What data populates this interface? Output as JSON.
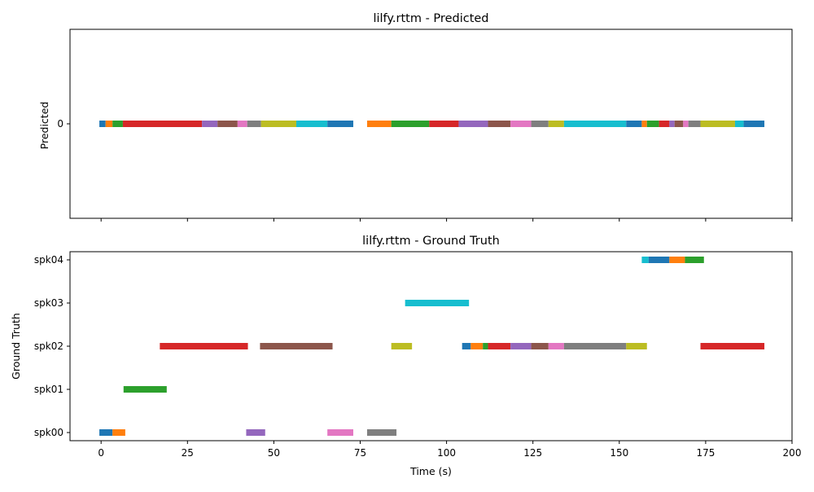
{
  "chart_data": [
    {
      "type": "bar",
      "subtype": "horizontal-timeline",
      "title": "lilfy.rttm - Predicted",
      "ylabel": "Predicted",
      "xlabel": "",
      "xlim": [
        -9,
        200
      ],
      "rows": [
        "0"
      ],
      "xticks": [
        0,
        25,
        50,
        75,
        100,
        125,
        150,
        175,
        200
      ],
      "show_xtick_labels": false,
      "grid": false,
      "segments": [
        {
          "row": "0",
          "start": -0.5,
          "end": 1.3,
          "color": "#1f77b4"
        },
        {
          "row": "0",
          "start": 1.3,
          "end": 3.3,
          "color": "#ff7f0e"
        },
        {
          "row": "0",
          "start": 3.3,
          "end": 6.3,
          "color": "#2ca02c"
        },
        {
          "row": "0",
          "start": 6.3,
          "end": 29.2,
          "color": "#d62728"
        },
        {
          "row": "0",
          "start": 29.2,
          "end": 33.7,
          "color": "#9467bd"
        },
        {
          "row": "0",
          "start": 33.7,
          "end": 39.5,
          "color": "#8c564b"
        },
        {
          "row": "0",
          "start": 39.5,
          "end": 42.3,
          "color": "#e377c2"
        },
        {
          "row": "0",
          "start": 42.3,
          "end": 46.3,
          "color": "#7f7f7f"
        },
        {
          "row": "0",
          "start": 46.3,
          "end": 56.5,
          "color": "#bcbd22"
        },
        {
          "row": "0",
          "start": 56.5,
          "end": 65.5,
          "color": "#17becf"
        },
        {
          "row": "0",
          "start": 65.5,
          "end": 73.0,
          "color": "#1f77b4"
        },
        {
          "row": "0",
          "start": 77.0,
          "end": 84.0,
          "color": "#ff7f0e"
        },
        {
          "row": "0",
          "start": 84.0,
          "end": 95.0,
          "color": "#2ca02c"
        },
        {
          "row": "0",
          "start": 95.0,
          "end": 103.5,
          "color": "#d62728"
        },
        {
          "row": "0",
          "start": 103.5,
          "end": 112.0,
          "color": "#9467bd"
        },
        {
          "row": "0",
          "start": 112.0,
          "end": 118.5,
          "color": "#8c564b"
        },
        {
          "row": "0",
          "start": 118.5,
          "end": 124.5,
          "color": "#e377c2"
        },
        {
          "row": "0",
          "start": 124.5,
          "end": 129.5,
          "color": "#7f7f7f"
        },
        {
          "row": "0",
          "start": 129.5,
          "end": 134.0,
          "color": "#bcbd22"
        },
        {
          "row": "0",
          "start": 134.0,
          "end": 152.0,
          "color": "#17becf"
        },
        {
          "row": "0",
          "start": 152.0,
          "end": 156.5,
          "color": "#1f77b4"
        },
        {
          "row": "0",
          "start": 156.5,
          "end": 158.0,
          "color": "#ff7f0e"
        },
        {
          "row": "0",
          "start": 158.0,
          "end": 161.5,
          "color": "#2ca02c"
        },
        {
          "row": "0",
          "start": 161.5,
          "end": 164.5,
          "color": "#d62728"
        },
        {
          "row": "0",
          "start": 164.5,
          "end": 166.0,
          "color": "#9467bd"
        },
        {
          "row": "0",
          "start": 166.0,
          "end": 168.5,
          "color": "#8c564b"
        },
        {
          "row": "0",
          "start": 168.5,
          "end": 170.0,
          "color": "#e377c2"
        },
        {
          "row": "0",
          "start": 170.0,
          "end": 173.5,
          "color": "#7f7f7f"
        },
        {
          "row": "0",
          "start": 173.5,
          "end": 183.5,
          "color": "#bcbd22"
        },
        {
          "row": "0",
          "start": 183.5,
          "end": 186.0,
          "color": "#17becf"
        },
        {
          "row": "0",
          "start": 186.0,
          "end": 192.0,
          "color": "#1f77b4"
        }
      ]
    },
    {
      "type": "bar",
      "subtype": "horizontal-timeline",
      "title": "lilfy.rttm - Ground Truth",
      "ylabel": "Ground Truth",
      "xlabel": "Time (s)",
      "xlim": [
        -9,
        200
      ],
      "rows": [
        "spk00",
        "spk01",
        "spk02",
        "spk03",
        "spk04"
      ],
      "xticks": [
        0,
        25,
        50,
        75,
        100,
        125,
        150,
        175,
        200
      ],
      "show_xtick_labels": true,
      "grid": false,
      "segments": [
        {
          "row": "spk00",
          "start": -0.5,
          "end": 3.3,
          "color": "#1f77b4"
        },
        {
          "row": "spk00",
          "start": 3.3,
          "end": 7.0,
          "color": "#ff7f0e"
        },
        {
          "row": "spk01",
          "start": 6.5,
          "end": 19.0,
          "color": "#2ca02c"
        },
        {
          "row": "spk02",
          "start": 17.0,
          "end": 42.5,
          "color": "#d62728"
        },
        {
          "row": "spk00",
          "start": 42.0,
          "end": 47.5,
          "color": "#9467bd"
        },
        {
          "row": "spk02",
          "start": 46.0,
          "end": 67.0,
          "color": "#8c564b"
        },
        {
          "row": "spk00",
          "start": 65.5,
          "end": 73.0,
          "color": "#e377c2"
        },
        {
          "row": "spk00",
          "start": 77.0,
          "end": 85.5,
          "color": "#7f7f7f"
        },
        {
          "row": "spk02",
          "start": 84.0,
          "end": 90.0,
          "color": "#bcbd22"
        },
        {
          "row": "spk03",
          "start": 88.0,
          "end": 106.5,
          "color": "#17becf"
        },
        {
          "row": "spk02",
          "start": 104.5,
          "end": 107.0,
          "color": "#1f77b4"
        },
        {
          "row": "spk02",
          "start": 107.0,
          "end": 110.5,
          "color": "#ff7f0e"
        },
        {
          "row": "spk02",
          "start": 110.5,
          "end": 112.0,
          "color": "#2ca02c"
        },
        {
          "row": "spk02",
          "start": 112.0,
          "end": 118.5,
          "color": "#d62728"
        },
        {
          "row": "spk02",
          "start": 118.5,
          "end": 124.5,
          "color": "#9467bd"
        },
        {
          "row": "spk02",
          "start": 124.5,
          "end": 129.5,
          "color": "#8c564b"
        },
        {
          "row": "spk02",
          "start": 129.5,
          "end": 134.0,
          "color": "#e377c2"
        },
        {
          "row": "spk02",
          "start": 134.0,
          "end": 152.0,
          "color": "#7f7f7f"
        },
        {
          "row": "spk02",
          "start": 152.0,
          "end": 158.0,
          "color": "#bcbd22"
        },
        {
          "row": "spk04",
          "start": 156.5,
          "end": 158.5,
          "color": "#17becf"
        },
        {
          "row": "spk04",
          "start": 158.5,
          "end": 164.5,
          "color": "#1f77b4"
        },
        {
          "row": "spk04",
          "start": 164.5,
          "end": 169.0,
          "color": "#ff7f0e"
        },
        {
          "row": "spk04",
          "start": 169.0,
          "end": 174.5,
          "color": "#2ca02c"
        },
        {
          "row": "spk02",
          "start": 173.5,
          "end": 192.0,
          "color": "#d62728"
        }
      ]
    }
  ]
}
